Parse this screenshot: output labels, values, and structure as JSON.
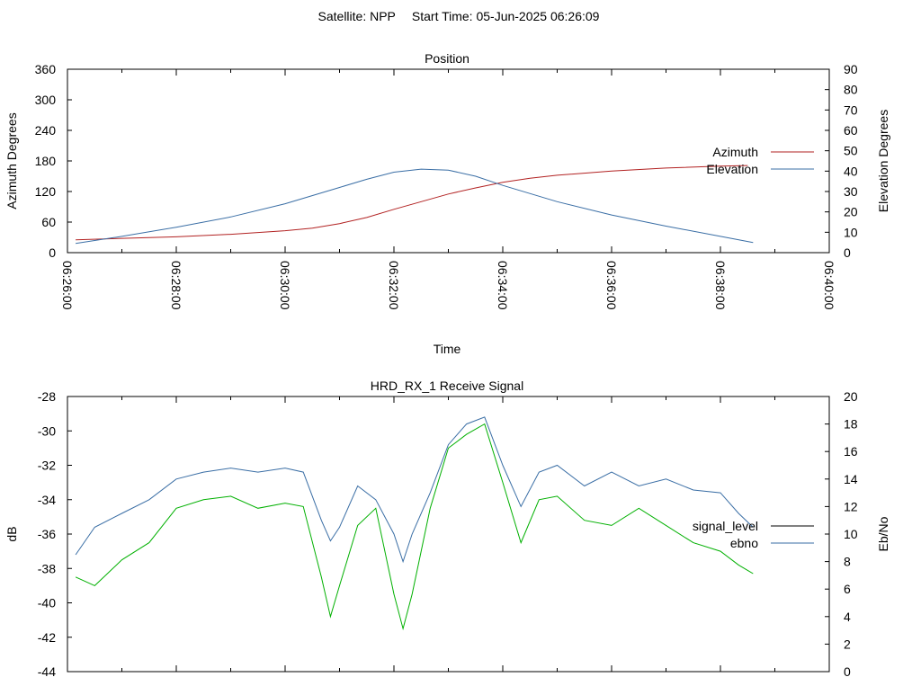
{
  "header": {
    "satellite": "Satellite: NPP",
    "start_time": "Start Time: 05-Jun-2025 06:26:09"
  },
  "colors": {
    "azimuth": "#b22222",
    "elevation": "#3a6ea5",
    "signal_level": "#000000",
    "ebno_line": "#3a6ea5",
    "green_trace": "#00b000"
  },
  "chart_data": [
    {
      "type": "line",
      "title": "Position",
      "xlabel": "Time",
      "ylabel": "Azimuth Degrees",
      "y2label": "Elevation Degrees",
      "xlim": [
        "06:26:00",
        "06:40:00"
      ],
      "x_tick_labels": [
        "06:26:00",
        "06:28:00",
        "06:30:00",
        "06:32:00",
        "06:34:00",
        "06:36:00",
        "06:38:00",
        "06:40:00"
      ],
      "ylim": [
        0,
        360
      ],
      "y_ticks": [
        0,
        60,
        120,
        180,
        240,
        300,
        360
      ],
      "y2lim": [
        0,
        90
      ],
      "y2_ticks": [
        0,
        10,
        20,
        30,
        40,
        50,
        60,
        70,
        80,
        90
      ],
      "legend": "right",
      "series": [
        {
          "name": "Azimuth",
          "axis": "left",
          "x": [
            "06:26:09",
            "06:27:00",
            "06:28:00",
            "06:29:00",
            "06:30:00",
            "06:30:30",
            "06:31:00",
            "06:31:30",
            "06:32:00",
            "06:32:30",
            "06:33:00",
            "06:33:30",
            "06:34:00",
            "06:34:30",
            "06:35:00",
            "06:36:00",
            "06:37:00",
            "06:38:00",
            "06:38:30"
          ],
          "y": [
            25,
            28,
            31,
            36,
            43,
            48,
            57,
            69,
            85,
            100,
            115,
            127,
            138,
            146,
            152,
            160,
            166,
            170,
            171
          ]
        },
        {
          "name": "Elevation",
          "axis": "right",
          "x": [
            "06:26:09",
            "06:27:00",
            "06:28:00",
            "06:29:00",
            "06:30:00",
            "06:31:00",
            "06:31:30",
            "06:32:00",
            "06:32:30",
            "06:33:00",
            "06:33:30",
            "06:34:00",
            "06:35:00",
            "06:36:00",
            "06:37:00",
            "06:38:00",
            "06:38:36"
          ],
          "y": [
            4.5,
            8,
            12.5,
            17.5,
            24,
            32,
            36,
            39.5,
            41,
            40.5,
            37.5,
            33,
            25,
            18.5,
            13,
            8,
            5
          ]
        }
      ]
    },
    {
      "type": "line",
      "title": "HRD_RX_1 Receive Signal",
      "ylabel": "dB",
      "y2label": "Eb/No",
      "xlim": [
        "06:26:00",
        "06:40:00"
      ],
      "ylim": [
        -44,
        -28
      ],
      "y_ticks": [
        -44,
        -42,
        -40,
        -38,
        -36,
        -34,
        -32,
        -30,
        -28
      ],
      "y2lim": [
        0,
        20
      ],
      "y2_ticks": [
        0,
        2,
        4,
        6,
        8,
        10,
        12,
        14,
        16,
        18,
        20
      ],
      "legend": "right",
      "series": [
        {
          "name": "signal_level",
          "axis": "left",
          "x": [
            "06:26:09",
            "06:26:30",
            "06:27:00",
            "06:27:30",
            "06:28:00",
            "06:28:30",
            "06:29:00",
            "06:29:30",
            "06:30:00",
            "06:30:20",
            "06:30:40",
            "06:30:50",
            "06:31:00",
            "06:31:20",
            "06:31:40",
            "06:32:00",
            "06:32:10",
            "06:32:20",
            "06:32:40",
            "06:33:00",
            "06:33:20",
            "06:33:40",
            "06:34:00",
            "06:34:20",
            "06:34:40",
            "06:35:00",
            "06:35:30",
            "06:36:00",
            "06:36:30",
            "06:37:00",
            "06:37:30",
            "06:38:00",
            "06:38:20",
            "06:38:36"
          ],
          "y": [
            -38.5,
            -39,
            -37.5,
            -36.5,
            -34.5,
            -34,
            -33.8,
            -34.5,
            -34.2,
            -34.4,
            -38.5,
            -40.8,
            -39,
            -35.5,
            -34.5,
            -39.5,
            -41.5,
            -39.5,
            -34.5,
            -31,
            -30.2,
            -29.6,
            -33,
            -36.5,
            -34,
            -33.8,
            -35.2,
            -35.5,
            -34.5,
            -35.5,
            -36.5,
            -37,
            -37.8,
            -38.3
          ]
        },
        {
          "name": "ebno",
          "axis": "right",
          "x": [
            "06:26:09",
            "06:26:30",
            "06:27:00",
            "06:27:30",
            "06:28:00",
            "06:28:30",
            "06:29:00",
            "06:29:30",
            "06:30:00",
            "06:30:20",
            "06:30:40",
            "06:30:50",
            "06:31:00",
            "06:31:20",
            "06:31:40",
            "06:32:00",
            "06:32:10",
            "06:32:20",
            "06:32:40",
            "06:33:00",
            "06:33:20",
            "06:33:40",
            "06:34:00",
            "06:34:20",
            "06:34:40",
            "06:35:00",
            "06:35:30",
            "06:36:00",
            "06:36:30",
            "06:37:00",
            "06:37:30",
            "06:38:00",
            "06:38:20",
            "06:38:36"
          ],
          "y": [
            8.5,
            10.5,
            11.5,
            12.5,
            14,
            14.5,
            14.8,
            14.5,
            14.8,
            14.5,
            11,
            9.5,
            10.5,
            13.5,
            12.5,
            10,
            8,
            10,
            13,
            16.5,
            18,
            18.5,
            15,
            12,
            14.5,
            15,
            13.5,
            14.5,
            13.5,
            14,
            13.2,
            13,
            11.5,
            10.5
          ]
        }
      ]
    }
  ]
}
